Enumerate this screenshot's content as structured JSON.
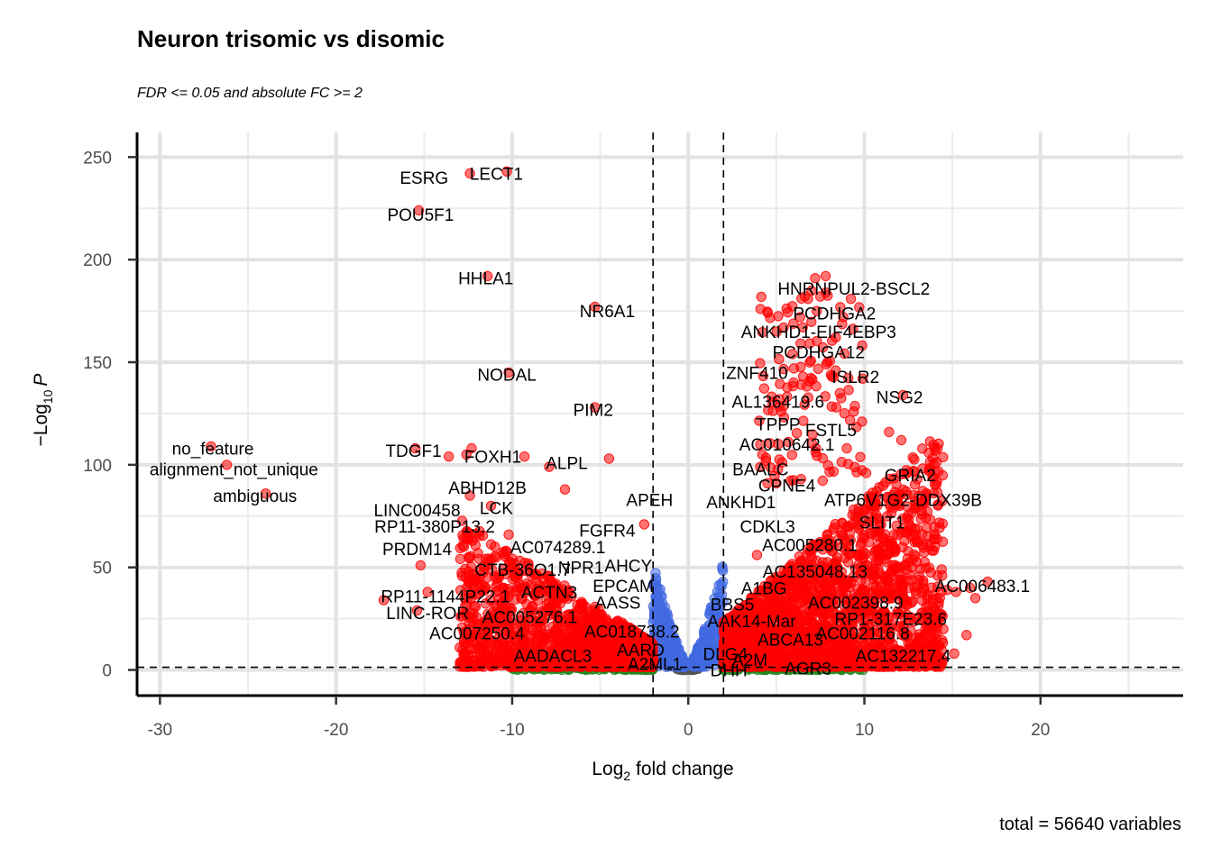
{
  "chart_data": {
    "type": "scatter",
    "title": "Neuron trisomic vs disomic",
    "subtitle": "FDR <= 0.05 and absolute FC >= 2",
    "xlabel": "Log",
    "xlabel_sub": "2",
    "xlabel_rest": " fold change",
    "ylabel": "−Log",
    "ylabel_sub": "10",
    "ylabel_rest": "P",
    "caption": "total = 56640 variables",
    "xlim": [
      -31.3,
      28.1
    ],
    "ylim": [
      -12.5,
      262
    ],
    "x_ticks": [
      -30,
      -20,
      -10,
      0,
      10,
      20
    ],
    "x_tick_labels": [
      "-30",
      "-20",
      "-10",
      "0",
      "10",
      "20"
    ],
    "y_ticks": [
      0,
      50,
      100,
      150,
      200,
      250
    ],
    "y_tick_labels": [
      "0",
      "50",
      "100",
      "150",
      "200",
      "250"
    ],
    "grid": true,
    "fc_cutoff": 2,
    "p_cutoff": 1.3,
    "colors": {
      "ns": "#555555",
      "log2fc": "#228b22",
      "p": "#4169e1",
      "p_and_log2fc": "#ff0000"
    },
    "highlighted_points": [
      {
        "x": -12.4,
        "y": 242
      },
      {
        "x": -10.3,
        "y": 243
      },
      {
        "x": -15.3,
        "y": 224
      },
      {
        "x": -11.4,
        "y": 192
      },
      {
        "x": -5.3,
        "y": 177
      },
      {
        "x": -10.2,
        "y": 145
      },
      {
        "x": -5.3,
        "y": 128
      },
      {
        "x": -27.1,
        "y": 109
      },
      {
        "x": -26.2,
        "y": 100
      },
      {
        "x": -24.0,
        "y": 86
      },
      {
        "x": -15.5,
        "y": 108
      },
      {
        "x": -12.3,
        "y": 108
      },
      {
        "x": -12.6,
        "y": 105
      },
      {
        "x": -13.6,
        "y": 104
      },
      {
        "x": -9.3,
        "y": 104
      },
      {
        "x": -7.9,
        "y": 99
      },
      {
        "x": -4.5,
        "y": 103
      },
      {
        "x": -7.0,
        "y": 88
      },
      {
        "x": -12.4,
        "y": 85
      },
      {
        "x": -11.2,
        "y": 80
      },
      {
        "x": -10.2,
        "y": 66
      },
      {
        "x": -15.2,
        "y": 51
      },
      {
        "x": -14.8,
        "y": 38
      },
      {
        "x": -17.3,
        "y": 34
      },
      {
        "x": -15.4,
        "y": 29
      },
      {
        "x": -12.7,
        "y": 35
      },
      {
        "x": -12.3,
        "y": 10
      },
      {
        "x": -11.4,
        "y": 4
      },
      {
        "x": -2.5,
        "y": 71
      },
      {
        "x": 7.2,
        "y": 191
      },
      {
        "x": 7.8,
        "y": 192
      },
      {
        "x": 7.5,
        "y": 182
      },
      {
        "x": 8.8,
        "y": 172
      },
      {
        "x": 6.5,
        "y": 167
      },
      {
        "x": 7.9,
        "y": 150
      },
      {
        "x": 6.0,
        "y": 147
      },
      {
        "x": 9.9,
        "y": 142
      },
      {
        "x": 12.2,
        "y": 134
      },
      {
        "x": 8.4,
        "y": 128
      },
      {
        "x": 9.4,
        "y": 126
      },
      {
        "x": 11.4,
        "y": 116
      },
      {
        "x": 12.1,
        "y": 112
      },
      {
        "x": 9.0,
        "y": 108
      },
      {
        "x": 10.1,
        "y": 96
      },
      {
        "x": 12.8,
        "y": 97
      },
      {
        "x": 13.3,
        "y": 82
      },
      {
        "x": 12.0,
        "y": 85
      },
      {
        "x": 10.6,
        "y": 80
      },
      {
        "x": 11.3,
        "y": 75
      },
      {
        "x": 4.2,
        "y": 105
      },
      {
        "x": 17.0,
        "y": 43
      },
      {
        "x": 16.0,
        "y": 40
      },
      {
        "x": 15.2,
        "y": 38
      },
      {
        "x": 14.7,
        "y": 39
      },
      {
        "x": 16.3,
        "y": 35
      },
      {
        "x": 15.8,
        "y": 17
      },
      {
        "x": 14.0,
        "y": 10
      },
      {
        "x": 15.1,
        "y": 8
      },
      {
        "x": 12.2,
        "y": 8
      },
      {
        "x": 3.9,
        "y": 56
      },
      {
        "x": 4.5,
        "y": 91
      },
      {
        "x": 5.0,
        "y": 91
      },
      {
        "x": 11.0,
        "y": 60
      },
      {
        "x": 10.2,
        "y": 71
      }
    ],
    "gene_labels": [
      {
        "text": "ESRG",
        "x": -15.0,
        "y": 240
      },
      {
        "text": "LECT1",
        "x": -10.9,
        "y": 242
      },
      {
        "text": "POU5F1",
        "x": -15.2,
        "y": 222
      },
      {
        "text": "HHLA1",
        "x": -11.5,
        "y": 191
      },
      {
        "text": "NR6A1",
        "x": -4.6,
        "y": 175
      },
      {
        "text": "NODAL",
        "x": -10.3,
        "y": 144
      },
      {
        "text": "PIM2",
        "x": -5.4,
        "y": 127
      },
      {
        "text": "no_feature",
        "x": -27.0,
        "y": 108
      },
      {
        "text": "alignment_not_unique",
        "x": -25.8,
        "y": 98
      },
      {
        "text": "ambiguous",
        "x": -24.6,
        "y": 85
      },
      {
        "text": "TDGF1",
        "x": -15.6,
        "y": 107
      },
      {
        "text": "FOXH1",
        "x": -11.1,
        "y": 104
      },
      {
        "text": "ALPL",
        "x": -6.9,
        "y": 101
      },
      {
        "text": "ABHD12B",
        "x": -11.4,
        "y": 89
      },
      {
        "text": "APEH",
        "x": -2.2,
        "y": 83
      },
      {
        "text": "LINC00458",
        "x": -15.4,
        "y": 78
      },
      {
        "text": "LCK",
        "x": -10.9,
        "y": 79
      },
      {
        "text": "RP11-380P13.2",
        "x": -14.4,
        "y": 70
      },
      {
        "text": "FGFR4",
        "x": -4.6,
        "y": 68
      },
      {
        "text": "PRDM14",
        "x": -15.4,
        "y": 59
      },
      {
        "text": "AC074289.1",
        "x": -7.4,
        "y": 60
      },
      {
        "text": "CTB-36O1.7",
        "x": -9.4,
        "y": 49
      },
      {
        "text": "NPR1",
        "x": -6.1,
        "y": 50
      },
      {
        "text": "AHCY",
        "x": -3.4,
        "y": 51
      },
      {
        "text": "RP11-1144P22.1",
        "x": -13.8,
        "y": 36
      },
      {
        "text": "ACTN3",
        "x": -7.9,
        "y": 38
      },
      {
        "text": "EPCAM",
        "x": -3.7,
        "y": 41
      },
      {
        "text": "AASS",
        "x": -4.0,
        "y": 33
      },
      {
        "text": "LINC-ROR",
        "x": -14.8,
        "y": 28
      },
      {
        "text": "AC005276.1",
        "x": -9.0,
        "y": 26
      },
      {
        "text": "AC018738.2",
        "x": -3.2,
        "y": 19
      },
      {
        "text": "AC007250.4",
        "x": -12.0,
        "y": 18
      },
      {
        "text": "AARD",
        "x": -2.7,
        "y": 10
      },
      {
        "text": "AADACL3",
        "x": -7.7,
        "y": 7
      },
      {
        "text": "A2ML1",
        "x": -1.9,
        "y": 3
      },
      {
        "text": "HNRNPUL2-BSCL2",
        "x": 9.4,
        "y": 186
      },
      {
        "text": "PCDHGA2",
        "x": 8.3,
        "y": 174
      },
      {
        "text": "ANKHD1-EIF4EBP3",
        "x": 7.4,
        "y": 165
      },
      {
        "text": "PCDHGA12",
        "x": 7.4,
        "y": 155
      },
      {
        "text": "ZNF410",
        "x": 3.9,
        "y": 145
      },
      {
        "text": "ISLR2",
        "x": 9.5,
        "y": 143
      },
      {
        "text": "NSG2",
        "x": 12.0,
        "y": 133
      },
      {
        "text": "AL136419.6",
        "x": 5.1,
        "y": 131
      },
      {
        "text": "TPPP",
        "x": 5.1,
        "y": 120
      },
      {
        "text": "FSTL5",
        "x": 8.1,
        "y": 117
      },
      {
        "text": "AC010642.1",
        "x": 5.6,
        "y": 110
      },
      {
        "text": "BAALC",
        "x": 4.1,
        "y": 98
      },
      {
        "text": "GRIA2",
        "x": 12.6,
        "y": 95
      },
      {
        "text": "CPNE4",
        "x": 5.6,
        "y": 90
      },
      {
        "text": "ANKHD1",
        "x": 3.0,
        "y": 82
      },
      {
        "text": "ATP6V1G2-DDX39B",
        "x": 12.2,
        "y": 83
      },
      {
        "text": "SLIT1",
        "x": 11.0,
        "y": 72
      },
      {
        "text": "CDKL3",
        "x": 4.5,
        "y": 70
      },
      {
        "text": "AC005280.1",
        "x": 6.9,
        "y": 61
      },
      {
        "text": "AC135048.13",
        "x": 7.2,
        "y": 48
      },
      {
        "text": "AC006483.1",
        "x": 16.7,
        "y": 41
      },
      {
        "text": "A1BG",
        "x": 4.3,
        "y": 40
      },
      {
        "text": "BBS5",
        "x": 2.5,
        "y": 32
      },
      {
        "text": "AC002398.9",
        "x": 9.5,
        "y": 33
      },
      {
        "text": "AAK14-Mar",
        "x": 3.6,
        "y": 24
      },
      {
        "text": "RP1-317E23.6",
        "x": 11.5,
        "y": 25
      },
      {
        "text": "ABCA13",
        "x": 5.8,
        "y": 15
      },
      {
        "text": "AC002116.8",
        "x": 9.9,
        "y": 18
      },
      {
        "text": "DLG4",
        "x": 2.1,
        "y": 8
      },
      {
        "text": "A2M",
        "x": 3.5,
        "y": 5
      },
      {
        "text": "AC132217.4",
        "x": 12.2,
        "y": 7
      },
      {
        "text": "DHH",
        "x": 2.3,
        "y": 0
      },
      {
        "text": "AGR3",
        "x": 6.8,
        "y": 1
      }
    ]
  }
}
